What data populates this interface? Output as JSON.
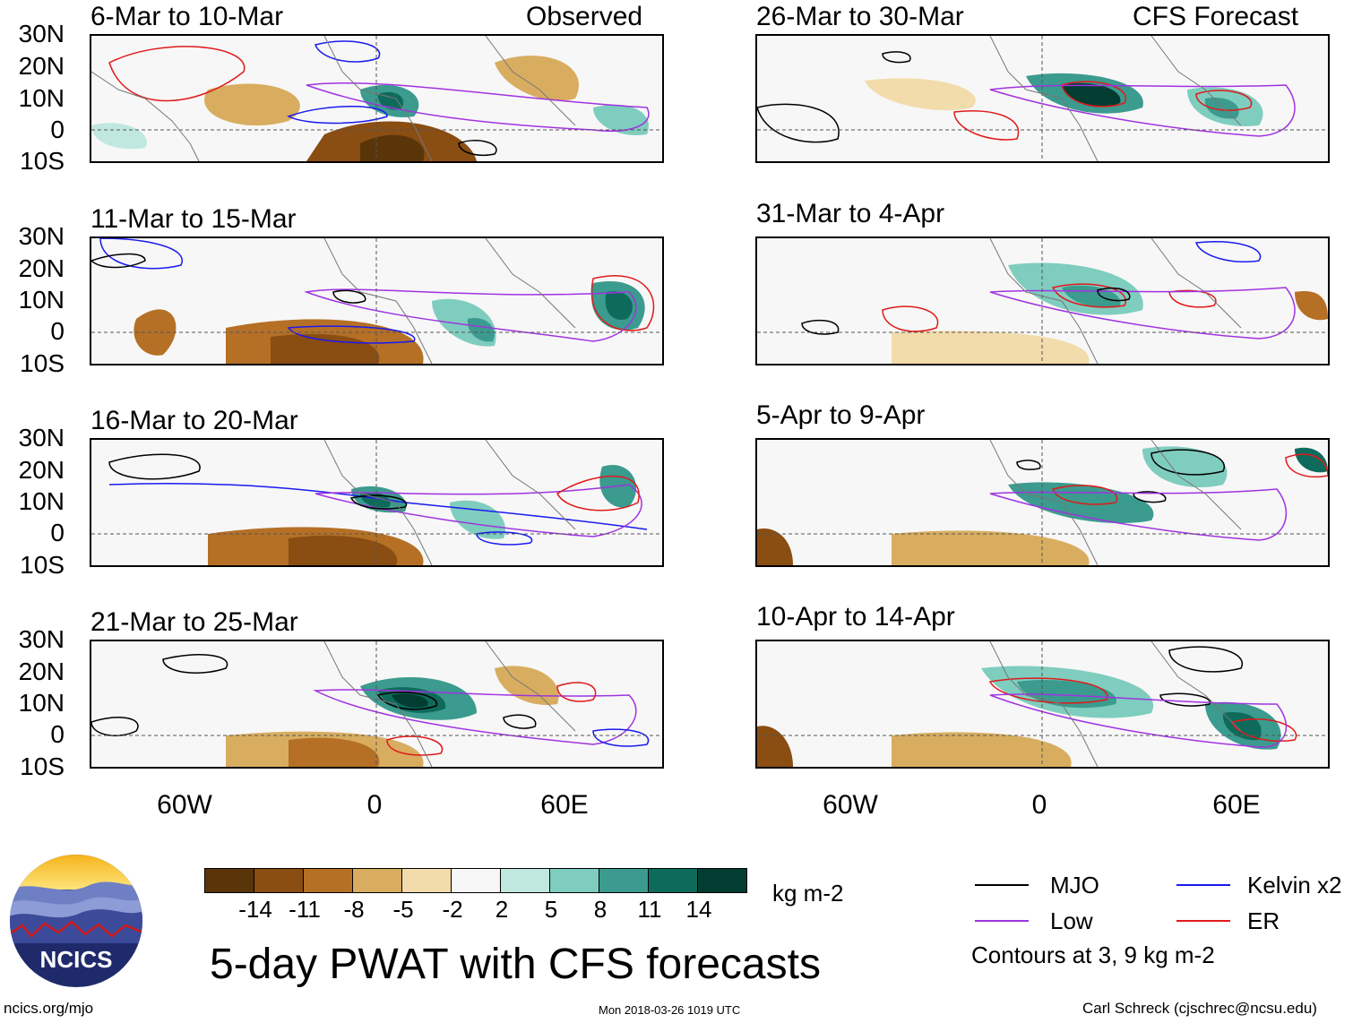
{
  "colors": {
    "mjo": "#000000",
    "low": "#a033e0",
    "kelvin": "#1a1aee",
    "er": "#e01a1a",
    "scale": [
      "#5a3509",
      "#8a4d12",
      "#b57026",
      "#d8ad60",
      "#f3dcac",
      "#f7f7f7",
      "#c0e8df",
      "#7fcdbf",
      "#3b9b8e",
      "#0e6b5c",
      "#023d31"
    ]
  },
  "panels": [
    {
      "period": "6-Mar to 10-Mar",
      "tag": "Observed"
    },
    {
      "period": "11-Mar to 15-Mar",
      "tag": ""
    },
    {
      "period": "16-Mar to 20-Mar",
      "tag": ""
    },
    {
      "period": "21-Mar to 25-Mar",
      "tag": ""
    },
    {
      "period": "26-Mar to 30-Mar",
      "tag": "CFS Forecast"
    },
    {
      "period": "31-Mar to 4-Apr",
      "tag": ""
    },
    {
      "period": "5-Apr to 9-Apr",
      "tag": ""
    },
    {
      "period": "10-Apr to 14-Apr",
      "tag": ""
    }
  ],
  "lat_labels": [
    "30N",
    "20N",
    "10N",
    "0",
    "10S"
  ],
  "lon_labels": [
    "60W",
    "0",
    "60E"
  ],
  "colorbar": {
    "labels": [
      "-14",
      "-11",
      "-8",
      "-5",
      "-2",
      "2",
      "5",
      "8",
      "11",
      "14"
    ],
    "units": "kg m-2"
  },
  "legend": {
    "items": [
      {
        "name": "MJO",
        "color": "#000000"
      },
      {
        "name": "Kelvin x2",
        "color": "#1a1aee"
      },
      {
        "name": "Low",
        "color": "#a033e0"
      },
      {
        "name": "ER",
        "color": "#e01a1a"
      }
    ],
    "note": "Contours at 3, 9 kg m-2"
  },
  "title": "5-day PWAT with CFS forecasts",
  "logo_text": "NCICS",
  "footer": {
    "left": "ncics.org/mjo",
    "center": "Mon 2018-03-26 1019 UTC",
    "right": "Carl Schreck (cjschrec@ncsu.edu)"
  }
}
